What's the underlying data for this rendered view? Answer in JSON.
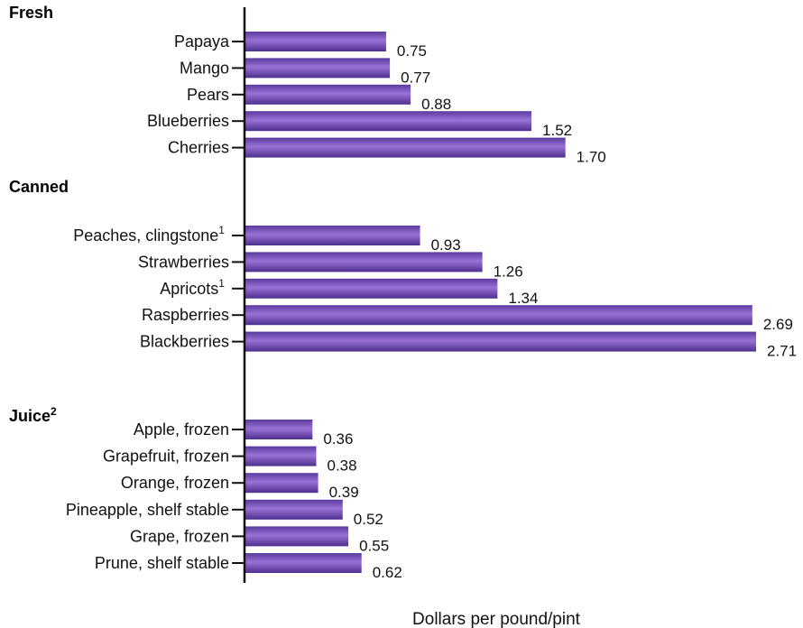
{
  "chart_data": {
    "type": "bar",
    "orientation": "horizontal",
    "xlabel": "Dollars per pound/pint",
    "xlim": [
      0,
      2.71
    ],
    "grid": false,
    "bar_color": "#7a4fb8",
    "groups": [
      {
        "title": "Fresh",
        "title_note": "",
        "items": [
          {
            "label": "Papaya",
            "note": "",
            "value": 0.75,
            "value_label": "0.75"
          },
          {
            "label": "Mango",
            "note": "",
            "value": 0.77,
            "value_label": "0.77"
          },
          {
            "label": "Pears",
            "note": "",
            "value": 0.88,
            "value_label": "0.88"
          },
          {
            "label": "Blueberries",
            "note": "",
            "value": 1.52,
            "value_label": "1.52"
          },
          {
            "label": "Cherries",
            "note": "",
            "value": 1.7,
            "value_label": "1.70"
          }
        ]
      },
      {
        "title": "Canned",
        "title_note": "",
        "items": [
          {
            "label": "Peaches, clingstone",
            "note": "1",
            "value": 0.93,
            "value_label": "0.93"
          },
          {
            "label": "Strawberries",
            "note": "",
            "value": 1.26,
            "value_label": "1.26"
          },
          {
            "label": "Apricots",
            "note": "1",
            "value": 1.34,
            "value_label": "1.34"
          },
          {
            "label": "Raspberries",
            "note": "",
            "value": 2.69,
            "value_label": "2.69"
          },
          {
            "label": "Blackberries",
            "note": "",
            "value": 2.71,
            "value_label": "2.71"
          }
        ]
      },
      {
        "title": "Juice",
        "title_note": "2",
        "items": [
          {
            "label": "Apple, frozen",
            "note": "",
            "value": 0.36,
            "value_label": "0.36"
          },
          {
            "label": "Grapefruit, frozen",
            "note": "",
            "value": 0.38,
            "value_label": "0.38"
          },
          {
            "label": "Orange, frozen",
            "note": "",
            "value": 0.39,
            "value_label": "0.39"
          },
          {
            "label": "Pineapple, shelf stable",
            "note": "",
            "value": 0.52,
            "value_label": "0.52"
          },
          {
            "label": "Grape, frozen",
            "note": "",
            "value": 0.55,
            "value_label": "0.55"
          },
          {
            "label": "Prune, shelf stable",
            "note": "",
            "value": 0.62,
            "value_label": "0.62"
          }
        ]
      }
    ]
  }
}
